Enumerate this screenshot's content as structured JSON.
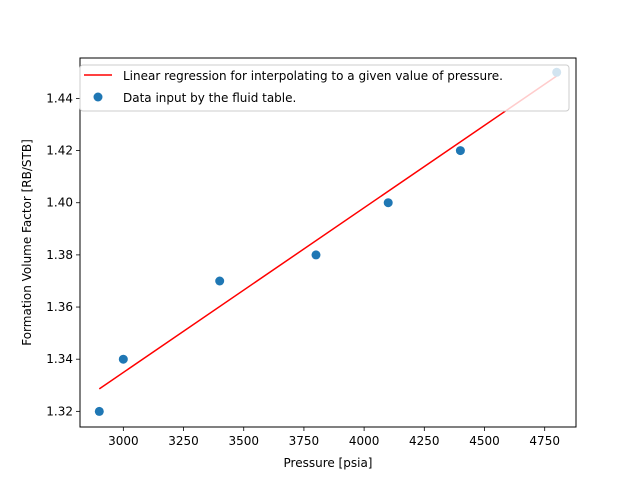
{
  "chart_data": {
    "type": "scatter",
    "title": "",
    "xlabel": "Pressure [psia]",
    "ylabel": "Formation Volume Factor [RB/STB]",
    "xlim": [
      2820,
      4880
    ],
    "ylim": [
      1.314,
      1.4555
    ],
    "xticks": [
      3000,
      3250,
      3500,
      3750,
      4000,
      4250,
      4500,
      4750
    ],
    "yticks": [
      1.32,
      1.34,
      1.36,
      1.38,
      1.4,
      1.42,
      1.44
    ],
    "grid": false,
    "legend_position": "top-left",
    "series": [
      {
        "name": "Linear regression for interpolating to a given value of pressure.",
        "kind": "line",
        "color": "#ff0000",
        "x": [
          2900,
          4800
        ],
        "y": [
          1.3286,
          1.4486
        ]
      },
      {
        "name": "Data input by the fluid table.",
        "kind": "scatter",
        "color": "#1f77b4",
        "x": [
          2900,
          3000,
          3400,
          3800,
          4100,
          4400,
          4800
        ],
        "y": [
          1.32,
          1.34,
          1.37,
          1.38,
          1.4,
          1.42,
          1.45
        ]
      }
    ]
  }
}
